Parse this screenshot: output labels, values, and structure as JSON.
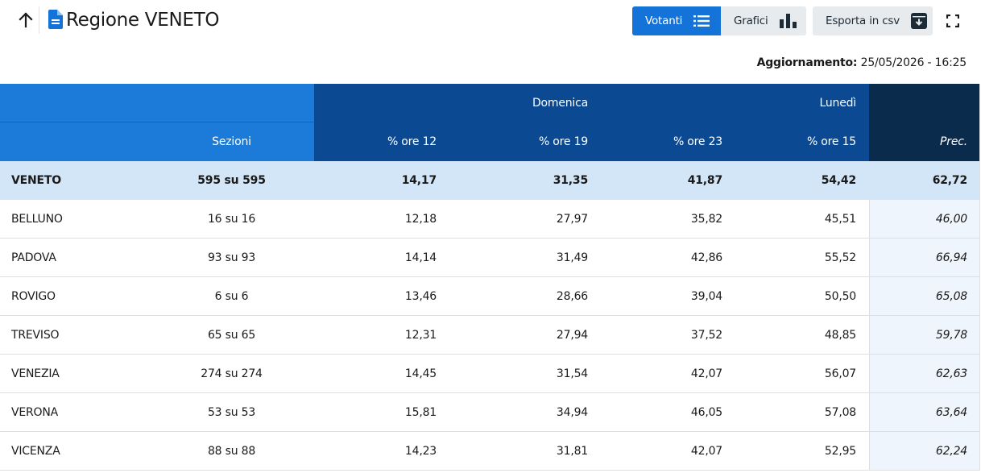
{
  "header": {
    "back_icon": "arrow-up-icon",
    "doc_icon": "document-icon",
    "title": "Regione VENETO",
    "buttons": {
      "votanti": "Votanti",
      "grafici": "Grafici",
      "csv": "Esporta in csv"
    },
    "fullscreen_icon": "fullscreen-icon"
  },
  "update": {
    "label": "Aggiornamento:",
    "value": "25/05/2026 - 16:25"
  },
  "colors": {
    "accent": "#1473d8",
    "header_left": "#1c7bd9",
    "header_mid": "#0b4a93",
    "header_right": "#0b2b4d",
    "total_row": "#d3e6f8"
  },
  "table": {
    "groups": {
      "domenica": "Domenica",
      "lunedi": "Lunedì"
    },
    "columns": {
      "sezioni": "Sezioni",
      "ore12": "% ore 12",
      "ore19": "% ore 19",
      "ore23": "% ore 23",
      "ore15": "% ore 15",
      "prec": "Prec."
    },
    "rows": [
      {
        "name": "VENETO",
        "sezioni": "595 su 595",
        "ore12": "14,17",
        "ore19": "31,35",
        "ore23": "41,87",
        "ore15": "54,42",
        "prec": "62,72"
      },
      {
        "name": "BELLUNO",
        "sezioni": "16 su 16",
        "ore12": "12,18",
        "ore19": "27,97",
        "ore23": "35,82",
        "ore15": "45,51",
        "prec": "46,00"
      },
      {
        "name": "PADOVA",
        "sezioni": "93 su 93",
        "ore12": "14,14",
        "ore19": "31,49",
        "ore23": "42,86",
        "ore15": "55,52",
        "prec": "66,94"
      },
      {
        "name": "ROVIGO",
        "sezioni": "6 su 6",
        "ore12": "13,46",
        "ore19": "28,66",
        "ore23": "39,04",
        "ore15": "50,50",
        "prec": "65,08"
      },
      {
        "name": "TREVISO",
        "sezioni": "65 su 65",
        "ore12": "12,31",
        "ore19": "27,94",
        "ore23": "37,52",
        "ore15": "48,85",
        "prec": "59,78"
      },
      {
        "name": "VENEZIA",
        "sezioni": "274 su 274",
        "ore12": "14,45",
        "ore19": "31,54",
        "ore23": "42,07",
        "ore15": "56,07",
        "prec": "62,63"
      },
      {
        "name": "VERONA",
        "sezioni": "53 su 53",
        "ore12": "15,81",
        "ore19": "34,94",
        "ore23": "46,05",
        "ore15": "57,08",
        "prec": "63,64"
      },
      {
        "name": "VICENZA",
        "sezioni": "88 su 88",
        "ore12": "14,23",
        "ore19": "31,81",
        "ore23": "42,07",
        "ore15": "52,95",
        "prec": "62,24"
      }
    ]
  }
}
